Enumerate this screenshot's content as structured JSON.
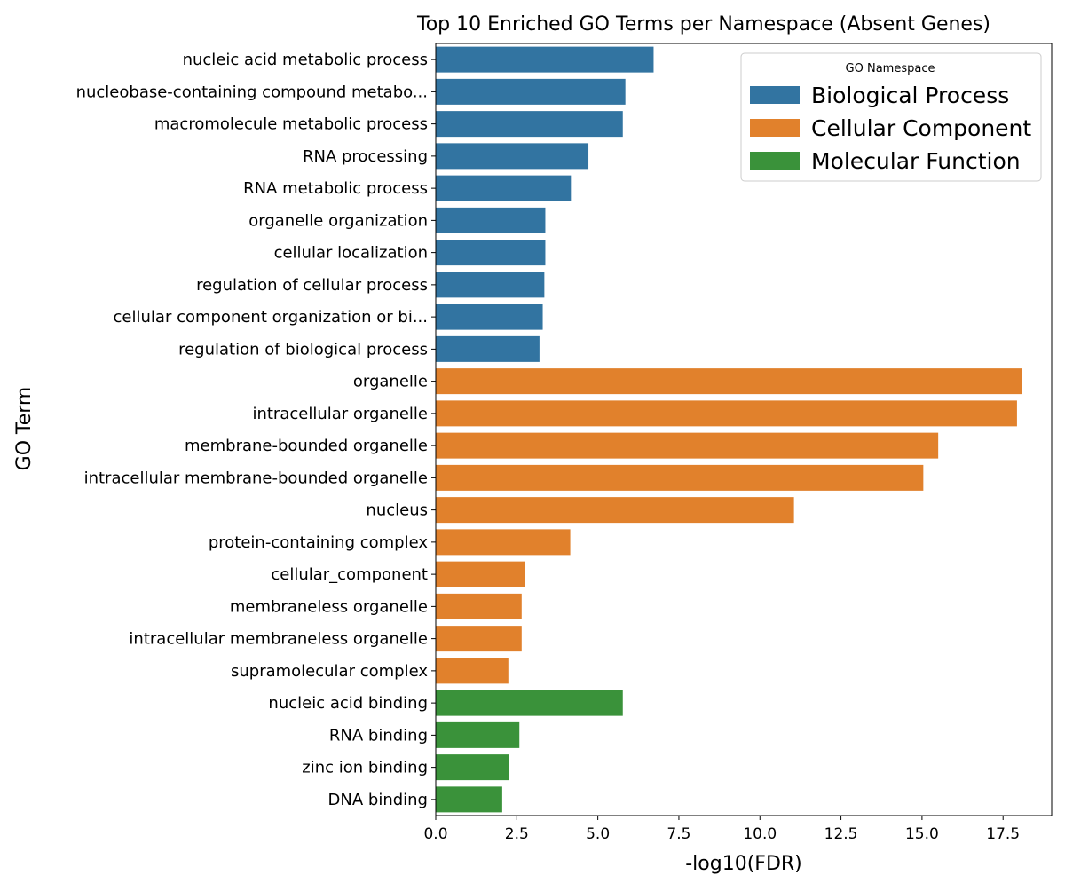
{
  "chart_data": {
    "type": "bar",
    "orientation": "horizontal",
    "title": "Top 10 Enriched GO Terms per Namespace (Absent Genes)",
    "xlabel": "-log10(FDR)",
    "ylabel": "GO Term",
    "xlim": [
      0,
      19
    ],
    "xticks": [
      0.0,
      2.5,
      5.0,
      7.5,
      10.0,
      12.5,
      15.0,
      17.5
    ],
    "xtick_labels": [
      "0.0",
      "2.5",
      "5.0",
      "7.5",
      "10.0",
      "12.5",
      "15.0",
      "17.5"
    ],
    "grid": false,
    "legend": {
      "title": "GO Namespace",
      "placement": "top-right",
      "entries": [
        "Biological Process",
        "Cellular Component",
        "Molecular Function"
      ]
    },
    "colors": {
      "Biological Process": "#3274a1",
      "Cellular Component": "#e1812c",
      "Molecular Function": "#3a923a"
    },
    "bars": [
      {
        "term": "nucleic acid metabolic process",
        "value": 6.72,
        "namespace": "Biological Process"
      },
      {
        "term": "nucleobase-containing compound metabo...",
        "value": 5.85,
        "namespace": "Biological Process"
      },
      {
        "term": "macromolecule metabolic process",
        "value": 5.77,
        "namespace": "Biological Process"
      },
      {
        "term": "RNA processing",
        "value": 4.71,
        "namespace": "Biological Process"
      },
      {
        "term": "RNA metabolic process",
        "value": 4.17,
        "namespace": "Biological Process"
      },
      {
        "term": "organelle organization",
        "value": 3.38,
        "namespace": "Biological Process"
      },
      {
        "term": "cellular localization",
        "value": 3.38,
        "namespace": "Biological Process"
      },
      {
        "term": "regulation of cellular process",
        "value": 3.35,
        "namespace": "Biological Process"
      },
      {
        "term": "cellular component organization or bi...",
        "value": 3.3,
        "namespace": "Biological Process"
      },
      {
        "term": "regulation of biological process",
        "value": 3.2,
        "namespace": "Biological Process"
      },
      {
        "term": "organelle",
        "value": 18.07,
        "namespace": "Cellular Component"
      },
      {
        "term": "intracellular organelle",
        "value": 17.93,
        "namespace": "Cellular Component"
      },
      {
        "term": "membrane-bounded organelle",
        "value": 15.5,
        "namespace": "Cellular Component"
      },
      {
        "term": "intracellular membrane-bounded organelle",
        "value": 15.04,
        "namespace": "Cellular Component"
      },
      {
        "term": "nucleus",
        "value": 11.05,
        "namespace": "Cellular Component"
      },
      {
        "term": "protein-containing complex",
        "value": 4.15,
        "namespace": "Cellular Component"
      },
      {
        "term": "cellular_component",
        "value": 2.75,
        "namespace": "Cellular Component"
      },
      {
        "term": "membraneless organelle",
        "value": 2.65,
        "namespace": "Cellular Component"
      },
      {
        "term": "intracellular membraneless organelle",
        "value": 2.65,
        "namespace": "Cellular Component"
      },
      {
        "term": "supramolecular complex",
        "value": 2.24,
        "namespace": "Cellular Component"
      },
      {
        "term": "nucleic acid binding",
        "value": 5.77,
        "namespace": "Molecular Function"
      },
      {
        "term": "RNA binding",
        "value": 2.58,
        "namespace": "Molecular Function"
      },
      {
        "term": "zinc ion binding",
        "value": 2.27,
        "namespace": "Molecular Function"
      },
      {
        "term": "DNA binding",
        "value": 2.05,
        "namespace": "Molecular Function"
      }
    ]
  }
}
